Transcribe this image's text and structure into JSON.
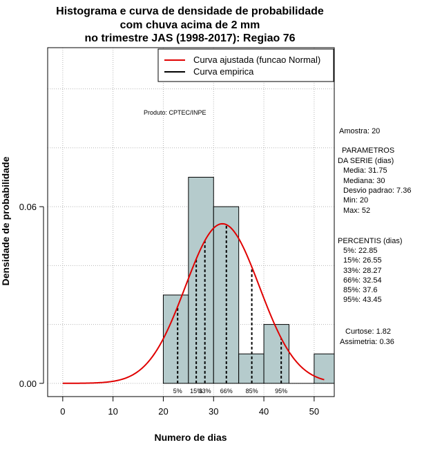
{
  "chart_data": {
    "type": "bar",
    "title_lines": [
      "Histograma e curva de densidade de probabilidade",
      "com chuva acima de 2 mm",
      "no trimestre JAS (1998-2017): Regiao 76"
    ],
    "xlabel": "Numero de dias",
    "ylabel": "Densidade de probabilidade",
    "xlim": [
      -3,
      54
    ],
    "ylim": [
      -0.0045,
      0.114
    ],
    "x_ticks": [
      0,
      10,
      20,
      30,
      40,
      50
    ],
    "y_ticks": [
      0.0,
      0.06
    ],
    "y_tick_labels": [
      "0.00",
      "0.06"
    ],
    "grid": true,
    "bins": [
      {
        "start": 20,
        "end": 25,
        "density": 0.03
      },
      {
        "start": 25,
        "end": 30,
        "density": 0.07
      },
      {
        "start": 30,
        "end": 35,
        "density": 0.06
      },
      {
        "start": 35,
        "end": 40,
        "density": 0.01
      },
      {
        "start": 40,
        "end": 45,
        "density": 0.02
      },
      {
        "start": 45,
        "end": 50,
        "density": 0.0
      },
      {
        "start": 50,
        "end": 55,
        "density": 0.01
      }
    ],
    "normal_fit": {
      "mean": 31.75,
      "sd": 7.36,
      "x_range": [
        0,
        52
      ]
    },
    "series": [
      {
        "name": "Curva ajustada (funcao Normal)",
        "color": "#e00000"
      },
      {
        "name": "Curva empirica",
        "color": "#000000"
      }
    ],
    "percentile_lines": [
      {
        "label": "5%",
        "value": 22.85
      },
      {
        "label": "15%",
        "value": 26.55
      },
      {
        "label": "33%",
        "value": 28.27
      },
      {
        "label": "66%",
        "value": 32.54
      },
      {
        "label": "85%",
        "value": 37.6
      },
      {
        "label": "95%",
        "value": 43.45
      }
    ],
    "product_label": "Produto: CPTEC/INPE",
    "stats": {
      "amostra": "Amostra: 20",
      "parametros_title_1": "PARAMETROS",
      "parametros_title_2": "DA SERIE (dias)",
      "media": "Media: 31.75",
      "mediana": "Mediana: 30",
      "desvio": "Desvio padrao: 7.36",
      "min": "Min: 20",
      "max": "Max: 52",
      "percentis_title": "PERCENTIS (dias)",
      "p5": "5%: 22.85",
      "p15": "15%: 26.55",
      "p33": "33%: 28.27",
      "p66": "66%: 32.54",
      "p85": "85%: 37.6",
      "p95": "95%: 43.45",
      "curtose": "Curtose: 1.82",
      "assimetria": "Assimetria: 0.36"
    },
    "colors": {
      "bar_fill": "#b5cbcc",
      "bar_stroke": "#000000",
      "grid": "#b4b4b4",
      "fit_line": "#e00000"
    }
  }
}
